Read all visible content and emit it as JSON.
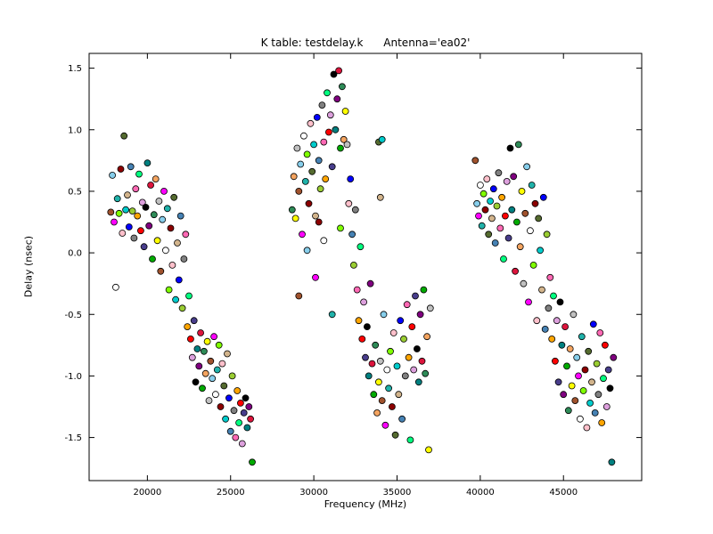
{
  "figure": {
    "background": "#ffffff",
    "frame_color": "#000000"
  },
  "chart_data": {
    "type": "scatter",
    "title": "K table: testdelay.k      Antenna='ea02'",
    "xlabel": "Frequency (MHz)",
    "ylabel": "Delay (nsec)",
    "xlim": [
      16500,
      49700
    ],
    "ylim": [
      -1.85,
      1.62
    ],
    "xticks": [
      20000,
      25000,
      30000,
      35000,
      40000,
      45000
    ],
    "yticks": [
      -1.5,
      -1.0,
      -0.5,
      0.0,
      0.5,
      1.0,
      1.5
    ],
    "grid": false,
    "legend": "none",
    "marker": {
      "radius": 3.5,
      "edge_color": "#000000",
      "edge_width": 0.8
    },
    "palette": [
      "#0000ff",
      "#ff0000",
      "#00aa00",
      "#ff00ff",
      "#00cccc",
      "#ffa500",
      "#800080",
      "#a0522d",
      "#ffc0cb",
      "#808080",
      "#000000",
      "#ffff00",
      "#7fff00",
      "#4682b4",
      "#dda0dd",
      "#2e8b57",
      "#ffffff",
      "#d2b48c",
      "#00ff7f",
      "#dc143c",
      "#87ceeb",
      "#556b2f",
      "#ff69b4",
      "#008080",
      "#c0c0c0",
      "#8b0000",
      "#9acd32",
      "#483d8b",
      "#f4a460",
      "#20b2aa"
    ],
    "points": [
      [
        17800,
        0.33
      ],
      [
        17900,
        0.63
      ],
      [
        18000,
        0.25
      ],
      [
        18100,
        -0.28
      ],
      [
        18200,
        0.44
      ],
      [
        18300,
        0.32
      ],
      [
        18400,
        0.68
      ],
      [
        18500,
        0.16
      ],
      [
        18600,
        0.95
      ],
      [
        18700,
        0.35
      ],
      [
        18800,
        0.47
      ],
      [
        18900,
        0.21
      ],
      [
        19000,
        0.7
      ],
      [
        19100,
        0.34
      ],
      [
        19200,
        0.12
      ],
      [
        19300,
        0.52
      ],
      [
        19400,
        0.3
      ],
      [
        19500,
        0.64
      ],
      [
        19600,
        0.18
      ],
      [
        19700,
        0.41
      ],
      [
        19800,
        0.05
      ],
      [
        19900,
        0.37
      ],
      [
        20000,
        0.73
      ],
      [
        20100,
        0.22
      ],
      [
        20200,
        0.55
      ],
      [
        20300,
        -0.05
      ],
      [
        20400,
        0.31
      ],
      [
        20500,
        0.6
      ],
      [
        20600,
        0.1
      ],
      [
        20700,
        0.42
      ],
      [
        20800,
        -0.15
      ],
      [
        20900,
        0.27
      ],
      [
        21000,
        0.5
      ],
      [
        21100,
        0.02
      ],
      [
        21200,
        0.36
      ],
      [
        21300,
        -0.3
      ],
      [
        21400,
        0.2
      ],
      [
        21500,
        -0.1
      ],
      [
        21600,
        0.45
      ],
      [
        21700,
        -0.38
      ],
      [
        21800,
        0.08
      ],
      [
        21900,
        -0.22
      ],
      [
        22000,
        0.3
      ],
      [
        22100,
        -0.45
      ],
      [
        22200,
        -0.05
      ],
      [
        22300,
        0.15
      ],
      [
        22400,
        -0.6
      ],
      [
        22500,
        -0.35
      ],
      [
        22600,
        -0.7
      ],
      [
        22700,
        -0.85
      ],
      [
        22800,
        -0.55
      ],
      [
        22900,
        -1.05
      ],
      [
        23000,
        -0.78
      ],
      [
        23100,
        -0.92
      ],
      [
        23200,
        -0.65
      ],
      [
        23300,
        -1.1
      ],
      [
        23400,
        -0.8
      ],
      [
        23500,
        -0.98
      ],
      [
        23600,
        -0.72
      ],
      [
        23700,
        -1.2
      ],
      [
        23800,
        -0.88
      ],
      [
        23900,
        -1.02
      ],
      [
        24000,
        -0.68
      ],
      [
        24100,
        -1.15
      ],
      [
        24200,
        -0.95
      ],
      [
        24300,
        -0.75
      ],
      [
        24400,
        -1.25
      ],
      [
        24500,
        -0.9
      ],
      [
        24600,
        -1.08
      ],
      [
        24700,
        -1.35
      ],
      [
        24800,
        -0.82
      ],
      [
        24900,
        -1.18
      ],
      [
        25000,
        -1.45
      ],
      [
        25100,
        -1.0
      ],
      [
        25200,
        -1.28
      ],
      [
        25300,
        -1.5
      ],
      [
        25400,
        -1.12
      ],
      [
        25500,
        -1.38
      ],
      [
        25600,
        -1.22
      ],
      [
        25700,
        -1.55
      ],
      [
        25800,
        -1.3
      ],
      [
        25900,
        -1.18
      ],
      [
        26000,
        -1.42
      ],
      [
        26100,
        -1.25
      ],
      [
        26200,
        -1.35
      ],
      [
        26300,
        -1.7
      ],
      [
        28700,
        0.35
      ],
      [
        28800,
        0.62
      ],
      [
        28900,
        0.28
      ],
      [
        29000,
        0.85
      ],
      [
        29100,
        0.5
      ],
      [
        29200,
        0.72
      ],
      [
        29300,
        0.15
      ],
      [
        29400,
        0.95
      ],
      [
        29500,
        0.58
      ],
      [
        29600,
        0.8
      ],
      [
        29700,
        0.4
      ],
      [
        29800,
        1.05
      ],
      [
        29900,
        0.66
      ],
      [
        30000,
        0.88
      ],
      [
        30100,
        0.3
      ],
      [
        30200,
        1.1
      ],
      [
        30300,
        0.75
      ],
      [
        30400,
        0.52
      ],
      [
        30500,
        1.2
      ],
      [
        30600,
        0.9
      ],
      [
        30700,
        0.6
      ],
      [
        30800,
        1.3
      ],
      [
        30900,
        0.98
      ],
      [
        31000,
        1.12
      ],
      [
        31100,
        0.7
      ],
      [
        31200,
        1.45
      ],
      [
        31300,
        1.0
      ],
      [
        31400,
        1.25
      ],
      [
        31500,
        1.48
      ],
      [
        31600,
        0.85
      ],
      [
        31700,
        1.35
      ],
      [
        31800,
        0.92
      ],
      [
        31900,
        1.15
      ],
      [
        32000,
        0.88
      ],
      [
        29100,
        -0.35
      ],
      [
        29600,
        0.02
      ],
      [
        30100,
        -0.2
      ],
      [
        30600,
        0.1
      ],
      [
        31100,
        -0.5
      ],
      [
        31600,
        0.2
      ],
      [
        30300,
        0.25
      ],
      [
        32100,
        0.4
      ],
      [
        33900,
        0.9
      ],
      [
        34100,
        0.92
      ],
      [
        34000,
        0.45
      ],
      [
        32200,
        0.6
      ],
      [
        32300,
        0.15
      ],
      [
        32400,
        -0.1
      ],
      [
        32500,
        0.35
      ],
      [
        32600,
        -0.3
      ],
      [
        32700,
        -0.55
      ],
      [
        32800,
        0.05
      ],
      [
        32900,
        -0.7
      ],
      [
        33000,
        -0.4
      ],
      [
        33100,
        -0.85
      ],
      [
        33200,
        -0.6
      ],
      [
        33300,
        -1.0
      ],
      [
        33400,
        -0.25
      ],
      [
        33500,
        -0.9
      ],
      [
        33600,
        -1.15
      ],
      [
        33700,
        -0.75
      ],
      [
        33800,
        -1.3
      ],
      [
        33900,
        -1.05
      ],
      [
        34000,
        -0.88
      ],
      [
        34100,
        -1.2
      ],
      [
        34200,
        -0.5
      ],
      [
        34300,
        -1.4
      ],
      [
        34400,
        -0.95
      ],
      [
        34500,
        -1.1
      ],
      [
        34600,
        -0.8
      ],
      [
        34700,
        -1.25
      ],
      [
        34800,
        -0.65
      ],
      [
        34900,
        -1.48
      ],
      [
        35000,
        -0.92
      ],
      [
        35100,
        -1.15
      ],
      [
        35200,
        -0.55
      ],
      [
        35300,
        -1.35
      ],
      [
        35400,
        -0.7
      ],
      [
        35500,
        -1.0
      ],
      [
        35600,
        -0.42
      ],
      [
        35700,
        -0.85
      ],
      [
        35800,
        -1.52
      ],
      [
        35900,
        -0.6
      ],
      [
        36000,
        -0.95
      ],
      [
        36100,
        -0.35
      ],
      [
        36200,
        -0.78
      ],
      [
        36300,
        -1.05
      ],
      [
        36400,
        -0.5
      ],
      [
        36500,
        -0.88
      ],
      [
        36600,
        -0.3
      ],
      [
        36700,
        -0.98
      ],
      [
        36800,
        -0.68
      ],
      [
        36900,
        -1.6
      ],
      [
        37000,
        -0.45
      ],
      [
        39700,
        0.75
      ],
      [
        39800,
        0.4
      ],
      [
        39900,
        0.3
      ],
      [
        40000,
        0.55
      ],
      [
        40100,
        0.22
      ],
      [
        40200,
        0.48
      ],
      [
        40300,
        0.35
      ],
      [
        40400,
        0.6
      ],
      [
        40500,
        0.15
      ],
      [
        40600,
        0.42
      ],
      [
        40700,
        0.28
      ],
      [
        40800,
        0.52
      ],
      [
        40900,
        0.08
      ],
      [
        41000,
        0.38
      ],
      [
        41100,
        0.65
      ],
      [
        41200,
        0.2
      ],
      [
        41300,
        0.45
      ],
      [
        41400,
        -0.05
      ],
      [
        41500,
        0.3
      ],
      [
        41600,
        0.58
      ],
      [
        41700,
        0.12
      ],
      [
        41800,
        0.85
      ],
      [
        41900,
        0.35
      ],
      [
        42000,
        0.62
      ],
      [
        42100,
        -0.15
      ],
      [
        42200,
        0.25
      ],
      [
        42300,
        0.88
      ],
      [
        42400,
        0.05
      ],
      [
        42500,
        0.5
      ],
      [
        42600,
        -0.25
      ],
      [
        42700,
        0.32
      ],
      [
        42800,
        0.7
      ],
      [
        42900,
        -0.4
      ],
      [
        43000,
        0.18
      ],
      [
        43100,
        0.55
      ],
      [
        43200,
        -0.1
      ],
      [
        43300,
        0.4
      ],
      [
        43400,
        -0.55
      ],
      [
        43500,
        0.28
      ],
      [
        43600,
        0.02
      ],
      [
        43700,
        -0.3
      ],
      [
        43800,
        0.45
      ],
      [
        43900,
        -0.62
      ],
      [
        44000,
        0.15
      ],
      [
        44100,
        -0.45
      ],
      [
        44200,
        -0.2
      ],
      [
        44300,
        -0.7
      ],
      [
        44400,
        -0.35
      ],
      [
        44500,
        -0.88
      ],
      [
        44600,
        -0.55
      ],
      [
        44700,
        -1.05
      ],
      [
        44800,
        -0.4
      ],
      [
        44900,
        -0.75
      ],
      [
        45000,
        -1.15
      ],
      [
        45100,
        -0.6
      ],
      [
        45200,
        -0.92
      ],
      [
        45300,
        -1.28
      ],
      [
        45400,
        -0.78
      ],
      [
        45500,
        -1.08
      ],
      [
        45600,
        -0.5
      ],
      [
        45700,
        -1.2
      ],
      [
        45800,
        -0.85
      ],
      [
        45900,
        -1.0
      ],
      [
        46000,
        -1.35
      ],
      [
        46100,
        -0.68
      ],
      [
        46200,
        -1.12
      ],
      [
        46300,
        -0.95
      ],
      [
        46400,
        -1.42
      ],
      [
        46500,
        -0.8
      ],
      [
        46600,
        -1.22
      ],
      [
        46700,
        -1.05
      ],
      [
        46800,
        -0.58
      ],
      [
        46900,
        -1.3
      ],
      [
        47000,
        -0.9
      ],
      [
        47100,
        -1.15
      ],
      [
        47200,
        -0.65
      ],
      [
        47300,
        -1.38
      ],
      [
        47400,
        -1.02
      ],
      [
        47500,
        -0.75
      ],
      [
        47600,
        -1.25
      ],
      [
        47700,
        -0.95
      ],
      [
        47800,
        -1.1
      ],
      [
        47900,
        -1.7
      ],
      [
        48000,
        -0.85
      ]
    ]
  }
}
